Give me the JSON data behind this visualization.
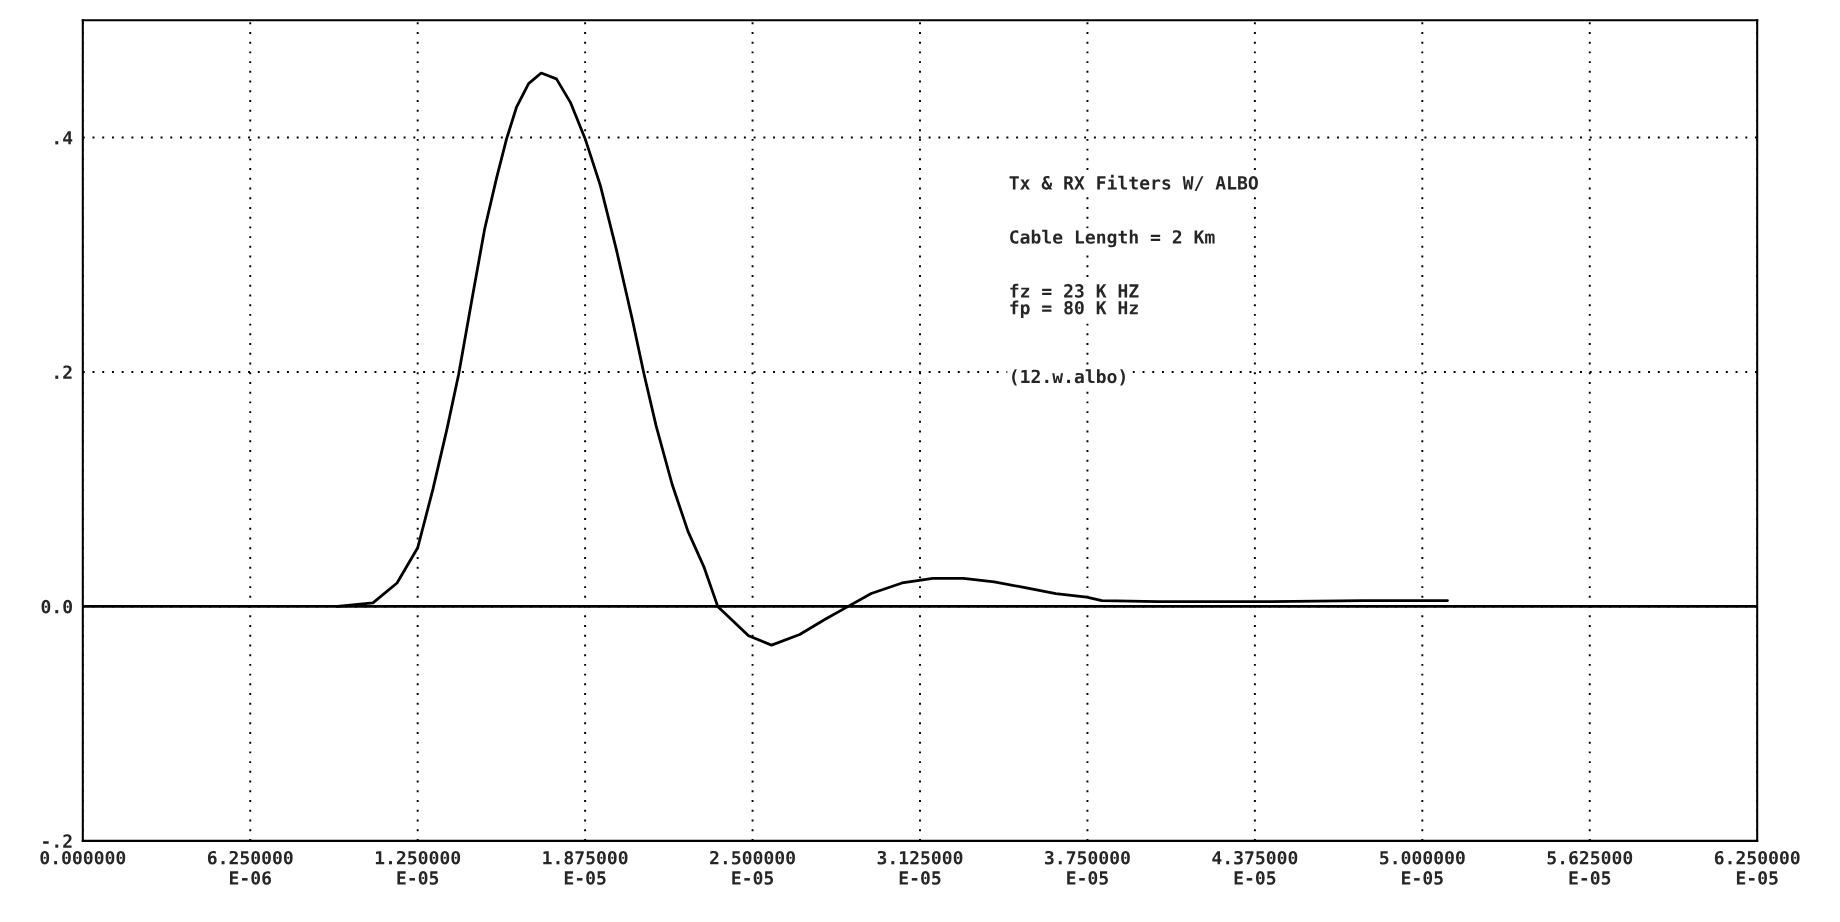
{
  "chart_data": {
    "type": "line",
    "x": [
      9.5e-06,
      1.083e-05,
      1.173e-05,
      1.25e-05,
      1.307e-05,
      1.359e-05,
      1.403e-05,
      1.455e-05,
      1.5e-05,
      1.545e-05,
      1.582e-05,
      1.619e-05,
      1.664e-05,
      1.711e-05,
      1.768e-05,
      1.82e-05,
      1.875e-05,
      1.932e-05,
      1.991e-05,
      2.051e-05,
      2.095e-05,
      2.14e-05,
      2.2e-05,
      2.259e-05,
      2.318e-05,
      2.37e-05,
      2.485e-05,
      2.571e-05,
      2.676e-05,
      2.771e-05,
      2.857e-05,
      2.943e-05,
      3.058e-05,
      3.173e-05,
      3.287e-05,
      3.402e-05,
      3.517e-05,
      3.632e-05,
      3.747e-05,
      3.804e-05,
      4.014e-05,
      4.396e-05,
      4.778e-05,
      5.094e-05
    ],
    "series": [
      {
        "color": "#000000",
        "values": [
          0.0,
          0.003,
          0.02,
          0.05,
          0.1,
          0.151,
          0.198,
          0.265,
          0.322,
          0.366,
          0.399,
          0.426,
          0.446,
          0.455,
          0.45,
          0.43,
          0.399,
          0.359,
          0.305,
          0.245,
          0.198,
          0.154,
          0.104,
          0.064,
          0.034,
          0.0,
          -0.025,
          -0.033,
          -0.024,
          -0.011,
          0.0,
          0.011,
          0.02,
          0.024,
          0.024,
          0.021,
          0.016,
          0.011,
          0.008,
          0.005,
          0.004,
          0.004,
          0.005,
          0.005
        ]
      }
    ],
    "xlim": [
      0,
      6.25e-05
    ],
    "ylim": [
      -0.2,
      0.5
    ],
    "xticks": [
      {
        "value": 0,
        "label": "0.000000"
      },
      {
        "value": 6.25e-06,
        "label": "6.250000E-06"
      },
      {
        "value": 1.25e-05,
        "label": "1.250000E-05"
      },
      {
        "value": 1.875e-05,
        "label": "1.875000E-05"
      },
      {
        "value": 2.5e-05,
        "label": "2.500000E-05"
      },
      {
        "value": 3.125e-05,
        "label": "3.125000E-05"
      },
      {
        "value": 3.75e-05,
        "label": "3.750000E-05"
      },
      {
        "value": 4.375e-05,
        "label": "4.375000E-05"
      },
      {
        "value": 5e-05,
        "label": "5.000000E-05"
      },
      {
        "value": 5.625e-05,
        "label": "5.625000E-05"
      },
      {
        "value": 6.25e-05,
        "label": "6.250000E-05"
      }
    ],
    "yticks": [
      {
        "value": -0.2,
        "label": "-.2"
      },
      {
        "value": 0.0,
        "label": "0.0"
      },
      {
        "value": 0.2,
        "label": ".2"
      },
      {
        "value": 0.4,
        "label": ".4"
      }
    ],
    "grid": true,
    "line_style": "solid",
    "ref_lines": [
      {
        "axis": "y",
        "value": 0.0,
        "color": "#000000",
        "line_style": "solid"
      }
    ],
    "annotations": [
      "Tx & RX Filters W/ ALBO",
      "Cable Length = 2 Km",
      "fz = 23 K HZ\nfp = 80 K Hz",
      "(12.w.albo)"
    ]
  }
}
